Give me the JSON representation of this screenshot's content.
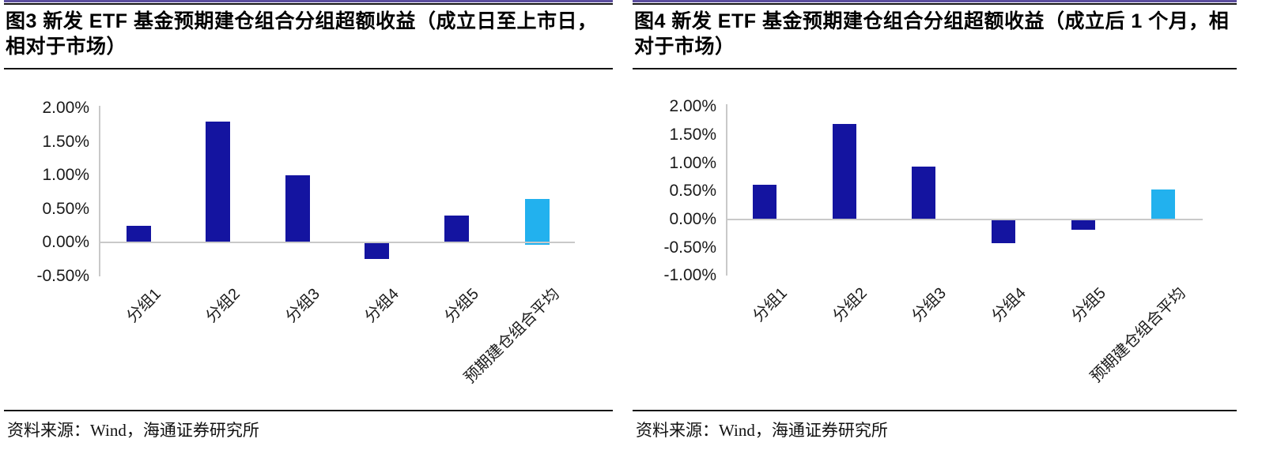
{
  "panels": [
    {
      "title": "图3  新发 ETF 基金预期建仓组合分组超额收益（成立日至上市日，相对于市场）",
      "source": "资料来源：Wind，海通证券研究所"
    },
    {
      "title": "图4  新发 ETF 基金预期建仓组合分组超额收益（成立后 1 个月，相对于市场）",
      "source": "资料来源：Wind，海通证券研究所"
    }
  ],
  "colors": {
    "bar_dark_blue": "#1414A0",
    "bar_cyan": "#22B1EE",
    "axis_gray": "#C9C9C9",
    "top_border_purple": "#5C4E9E",
    "rule_black": "#141414"
  },
  "chart_data": [
    {
      "type": "bar",
      "title": "新发 ETF 基金预期建仓组合分组超额收益（成立日至上市日，相对于市场）",
      "categories": [
        "分组1",
        "分组2",
        "分组3",
        "分组4",
        "分组5",
        "预期建仓组合平均"
      ],
      "values": [
        0.25,
        1.8,
        1.0,
        -0.25,
        0.4,
        0.65
      ],
      "mins": [
        0,
        0,
        0,
        0,
        0,
        -0.04
      ],
      "unit": "%",
      "bar_colors": [
        "#1414A0",
        "#1414A0",
        "#1414A0",
        "#1414A0",
        "#1414A0",
        "#22B1EE"
      ],
      "ticks": [
        {
          "label": "2.00%",
          "value": 2.0
        },
        {
          "label": "1.50%",
          "value": 1.5
        },
        {
          "label": "1.00%",
          "value": 1.0
        },
        {
          "label": "0.50%",
          "value": 0.5
        },
        {
          "label": "0.00%",
          "value": 0.0
        },
        {
          "label": "-0.50%",
          "value": -0.5
        }
      ],
      "ylim": [
        -0.5,
        2.0
      ],
      "xlabel": "",
      "ylabel": "",
      "grid": false,
      "legend": null
    },
    {
      "type": "bar",
      "title": "新发 ETF 基金预期建仓组合分组超额收益（成立后 1 个月，相对于市场）",
      "categories": [
        "分组1",
        "分组2",
        "分组3",
        "分组4",
        "分组5",
        "预期建仓组合平均"
      ],
      "values": [
        0.62,
        1.7,
        0.94,
        -0.42,
        -0.18,
        0.53
      ],
      "mins": [
        0,
        0,
        0,
        0,
        0,
        0
      ],
      "unit": "%",
      "bar_colors": [
        "#1414A0",
        "#1414A0",
        "#1414A0",
        "#1414A0",
        "#1414A0",
        "#22B1EE"
      ],
      "ticks": [
        {
          "label": "2.00%",
          "value": 2.0
        },
        {
          "label": "1.50%",
          "value": 1.5
        },
        {
          "label": "1.00%",
          "value": 1.0
        },
        {
          "label": "0.50%",
          "value": 0.5
        },
        {
          "label": "0.00%",
          "value": 0.0
        },
        {
          "label": "-0.50%",
          "value": -0.5
        },
        {
          "label": "-1.00%",
          "value": -1.0
        }
      ],
      "ylim": [
        -1.0,
        2.0
      ],
      "xlabel": "",
      "ylabel": "",
      "grid": false,
      "legend": null
    }
  ]
}
